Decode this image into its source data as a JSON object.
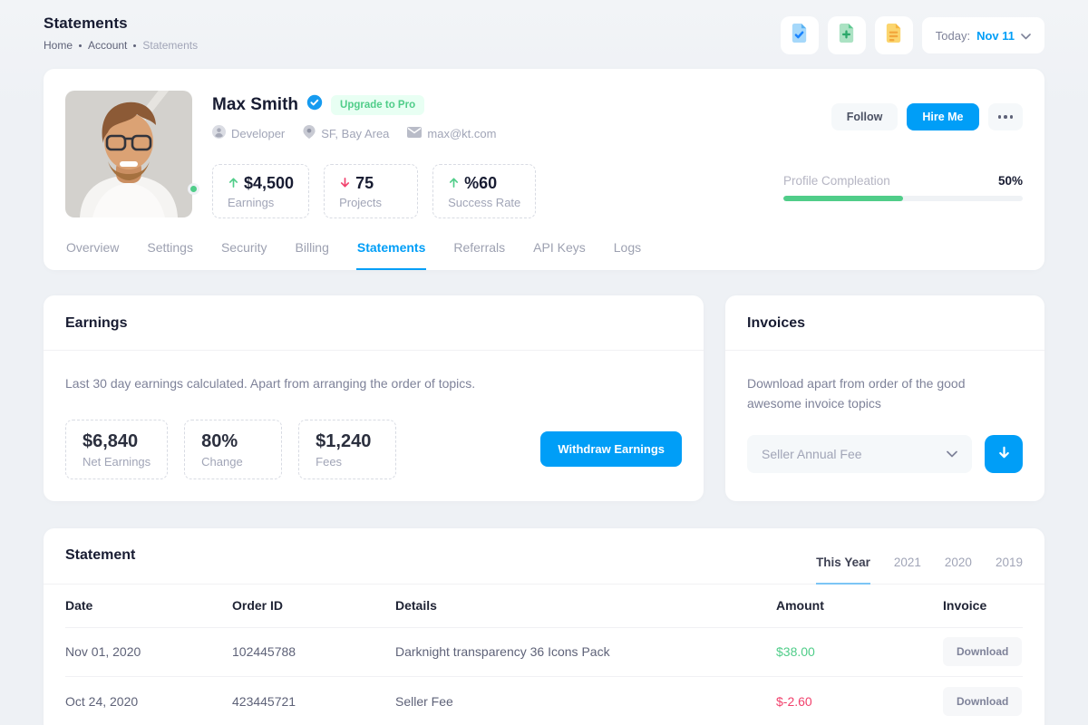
{
  "page": {
    "title": "Statements",
    "breadcrumb": [
      {
        "label": "Home"
      },
      {
        "label": "Account"
      },
      {
        "label": "Statements"
      }
    ]
  },
  "header": {
    "icons": [
      "file-check-icon",
      "file-plus-icon",
      "file-lines-icon"
    ],
    "date_label": "Today:",
    "date_value": "Nov 11"
  },
  "profile": {
    "name": "Max Smith",
    "verified_icon": "verified-seal-icon",
    "pro_badge": "Upgrade to Pro",
    "meta": [
      {
        "icon": "user-icon",
        "label": "Developer"
      },
      {
        "icon": "pin-icon",
        "label": "SF, Bay Area"
      },
      {
        "icon": "mail-icon",
        "label": "max@kt.com"
      }
    ],
    "stats": [
      {
        "trend": "up",
        "value": "$4,500",
        "label": "Earnings"
      },
      {
        "trend": "down",
        "value": "75",
        "label": "Projects"
      },
      {
        "trend": "up",
        "value": "%60",
        "label": "Success Rate"
      }
    ],
    "actions": {
      "follow": "Follow",
      "hire": "Hire Me"
    },
    "progress": {
      "label": "Profile Compleation",
      "value": "50%",
      "percent": 50
    }
  },
  "tabs": [
    {
      "label": "Overview",
      "active": false
    },
    {
      "label": "Settings",
      "active": false
    },
    {
      "label": "Security",
      "active": false
    },
    {
      "label": "Billing",
      "active": false
    },
    {
      "label": "Statements",
      "active": true
    },
    {
      "label": "Referrals",
      "active": false
    },
    {
      "label": "API Keys",
      "active": false
    },
    {
      "label": "Logs",
      "active": false
    }
  ],
  "earnings": {
    "title": "Earnings",
    "description": "Last 30 day earnings calculated. Apart from arranging the order of topics.",
    "stats": [
      {
        "value": "$6,840",
        "label": "Net Earnings"
      },
      {
        "value": "80%",
        "label": "Change"
      },
      {
        "value": "$1,240",
        "label": "Fees"
      }
    ],
    "withdraw_label": "Withdraw Earnings"
  },
  "invoices": {
    "title": "Invoices",
    "description": "Download apart from order of the good awesome invoice topics",
    "select_value": "Seller Annual Fee",
    "download_icon": "arrow-down-icon"
  },
  "statement": {
    "title": "Statement",
    "tabs": [
      {
        "label": "This Year",
        "active": true
      },
      {
        "label": "2021",
        "active": false
      },
      {
        "label": "2020",
        "active": false
      },
      {
        "label": "2019",
        "active": false
      }
    ],
    "columns": [
      "Date",
      "Order ID",
      "Details",
      "Amount",
      "Invoice"
    ],
    "rows": [
      {
        "date": "Nov 01, 2020",
        "order_id": "102445788",
        "details": "Darknight transparency 36 Icons Pack",
        "amount": "$38.00",
        "amount_color": "#50CD89",
        "invoice": "Download"
      },
      {
        "date": "Oct 24, 2020",
        "order_id": "423445721",
        "details": "Seller Fee",
        "amount": "$-2.60",
        "amount_color": "#F1416C",
        "invoice": "Download"
      }
    ]
  },
  "colors": {
    "primary": "#009EF7",
    "success": "#50CD89",
    "success_light": "#E8FFF3",
    "danger": "#F1416C",
    "muted": "#A1A5B7",
    "dark": "#181C32",
    "light_button": "#F5F8FA",
    "background": "#EEF1F5"
  }
}
